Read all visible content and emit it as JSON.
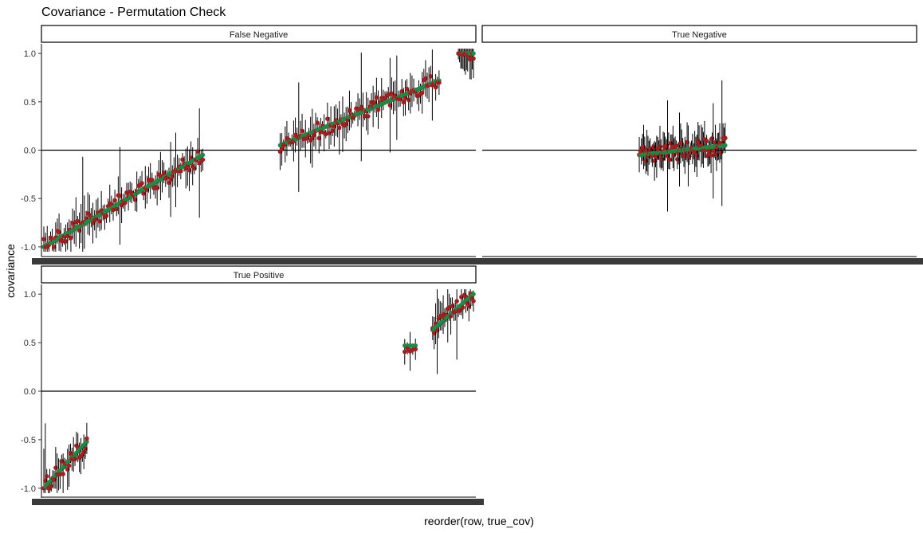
{
  "chart_data": {
    "type": "scatter",
    "title": "Covariance - Permutation Check",
    "xlabel": "reorder(row, true_cov)",
    "ylabel": "covariance",
    "ylim": [
      -1.1,
      1.1
    ],
    "yticks": [
      -1.0,
      -0.5,
      0.0,
      0.5,
      1.0
    ],
    "ytick_labels": [
      "-1.0",
      "-0.5",
      "0.0",
      "0.5",
      "1.0"
    ],
    "reference_line": 0,
    "grid": false,
    "colors": {
      "estimate_point": "#a31f1f",
      "true_point": "#1f8a45",
      "error_bar": "#000000",
      "reference_line": "#000000"
    },
    "series": [
      {
        "name": "estimate",
        "marker": "dark red dot with error bar"
      },
      {
        "name": "true_cov",
        "marker": "green dot"
      }
    ],
    "panels": [
      {
        "label": "False Negative",
        "segments": [
          {
            "x_range": [
              0,
              0.37
            ],
            "true_from": -1.0,
            "true_to": -0.05,
            "n": 95
          },
          {
            "x_range": [
              0.55,
              0.92
            ],
            "true_from": 0.05,
            "true_to": 0.72,
            "n": 95
          },
          {
            "x_range": [
              0.965,
              1.0
            ],
            "true_from": 1.0,
            "true_to": 1.0,
            "n": 14
          }
        ]
      },
      {
        "label": "True Negative",
        "segments": [
          {
            "x_range": [
              0.36,
              0.56
            ],
            "true_from": -0.05,
            "true_to": 0.05,
            "n": 80
          }
        ]
      },
      {
        "label": "True Positive",
        "segments": [
          {
            "x_range": [
              0.0,
              0.1
            ],
            "true_from": -1.0,
            "true_to": -0.52,
            "n": 30
          },
          {
            "x_range": [
              0.84,
              0.865
            ],
            "true_from": 0.47,
            "true_to": 0.47,
            "n": 5
          },
          {
            "x_range": [
              0.905,
              1.0
            ],
            "true_from": 0.63,
            "true_to": 1.0,
            "n": 28
          }
        ]
      }
    ]
  }
}
